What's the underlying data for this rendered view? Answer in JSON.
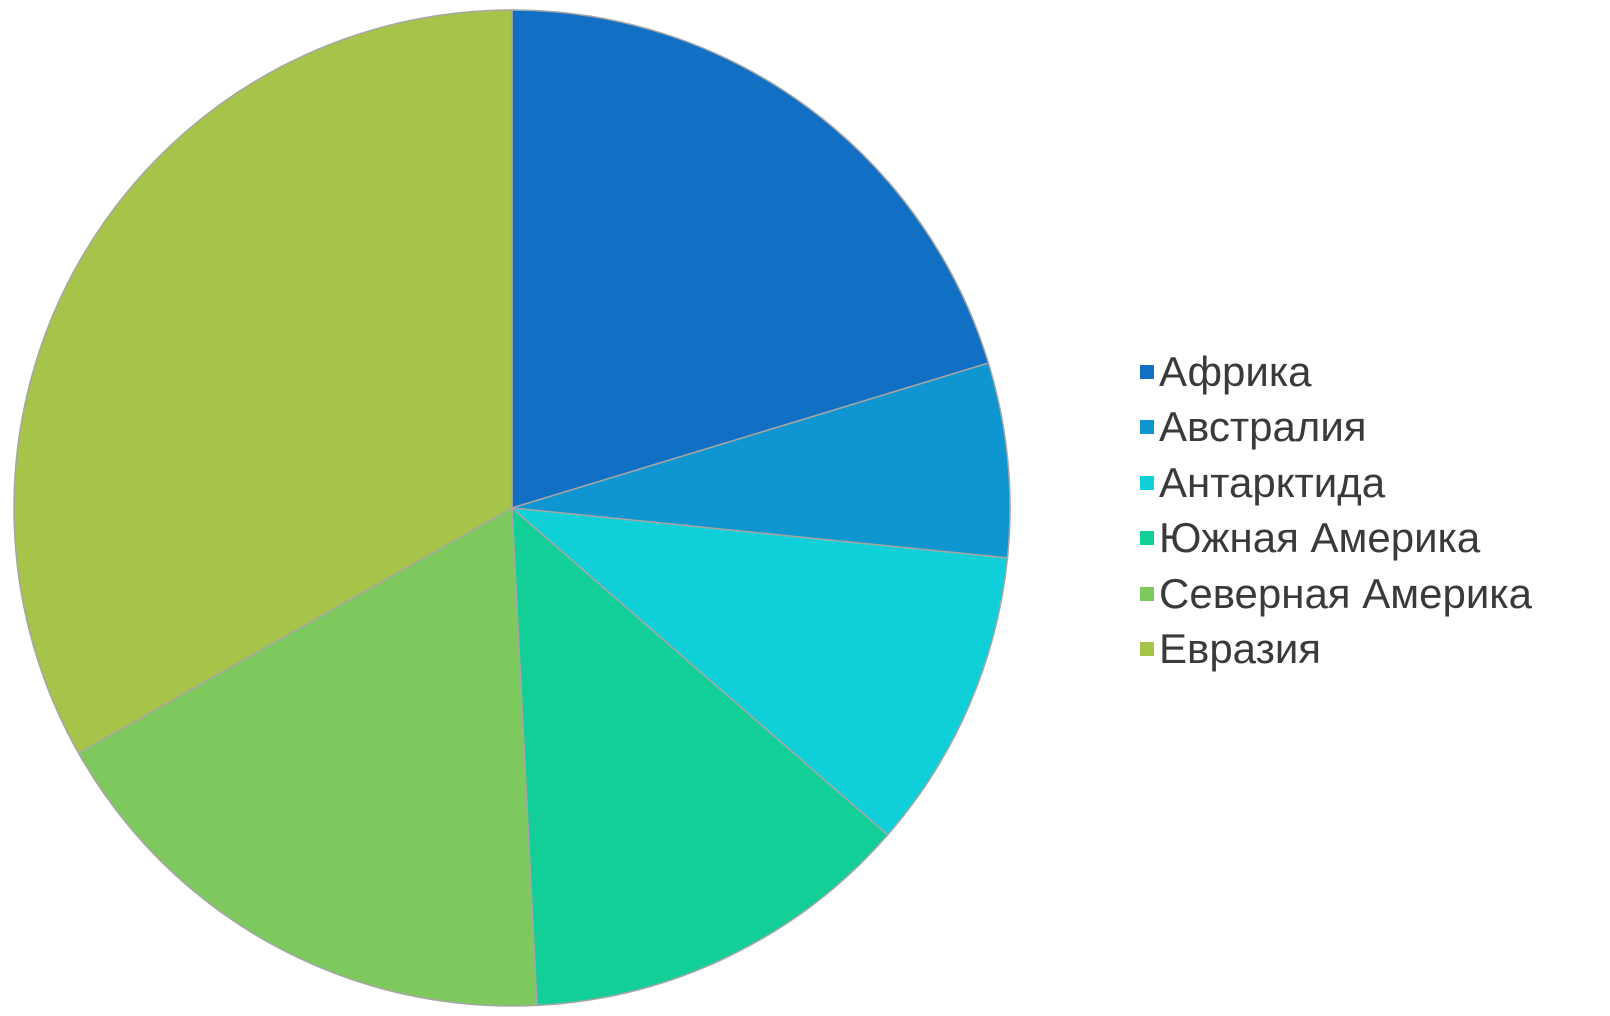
{
  "chart_data": {
    "type": "pie",
    "title": "",
    "start_angle": "12 o'clock",
    "direction": "clockwise",
    "legend_position": "right",
    "slice_border_color": "#a6a6a6",
    "categories": [
      "Африка",
      "Австралия",
      "Антарктида",
      "Южная Америка",
      "Северная Америка",
      "Евразия"
    ],
    "values": [
      20.3,
      6.3,
      9.8,
      12.8,
      17.6,
      33.2
    ],
    "colors": [
      "#1170c3",
      "#0f95cf",
      "#0fcfd9",
      "#12cf98",
      "#7dc95e",
      "#a6c34a"
    ]
  }
}
